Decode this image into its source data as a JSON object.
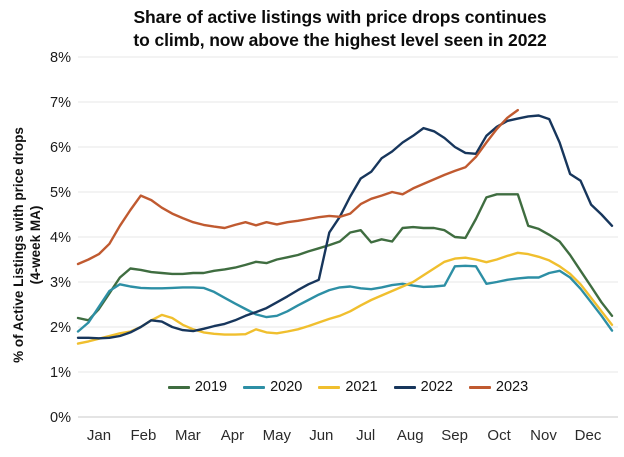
{
  "title": {
    "line1": "Share of active listings with price drops continues",
    "line2": "to climb, now above the highest level seen in 2022"
  },
  "y_axis": {
    "label_line1": "% of Active Listings with price drops",
    "label_line2": "(4-week MA)"
  },
  "chart_data": {
    "type": "line",
    "x_unit": "weekly observations, weeks 1-52",
    "months": [
      "Jan",
      "Feb",
      "Mar",
      "Apr",
      "May",
      "Jun",
      "Jul",
      "Aug",
      "Sep",
      "Oct",
      "Nov",
      "Dec"
    ],
    "y_ticks": [
      "0%",
      "1%",
      "2%",
      "3%",
      "4%",
      "5%",
      "6%",
      "7%",
      "8%"
    ],
    "ylim": [
      0,
      8
    ],
    "grid": "horizontal-only",
    "legend_position": "bottom",
    "background": "#ffffff",
    "gridline_color": "#e7e7e7",
    "baseline_color": "#c9c9c9",
    "series": [
      {
        "name": "2019",
        "color": "#3f6d40",
        "values": [
          2.2,
          2.15,
          2.4,
          2.75,
          3.1,
          3.3,
          3.27,
          3.22,
          3.2,
          3.18,
          3.18,
          3.2,
          3.2,
          3.25,
          3.28,
          3.32,
          3.38,
          3.45,
          3.42,
          3.5,
          3.55,
          3.6,
          3.68,
          3.75,
          3.82,
          3.9,
          4.1,
          4.15,
          3.88,
          3.95,
          3.9,
          4.2,
          4.22,
          4.2,
          4.2,
          4.15,
          4.0,
          3.98,
          4.4,
          4.88,
          4.95,
          4.95,
          4.95,
          4.25,
          4.18,
          4.05,
          3.9,
          3.6,
          3.25,
          2.9,
          2.55,
          2.25
        ]
      },
      {
        "name": "2020",
        "color": "#2d8fa5",
        "values": [
          1.9,
          2.1,
          2.45,
          2.8,
          2.95,
          2.9,
          2.87,
          2.86,
          2.86,
          2.87,
          2.88,
          2.88,
          2.87,
          2.78,
          2.65,
          2.52,
          2.4,
          2.28,
          2.22,
          2.25,
          2.35,
          2.48,
          2.6,
          2.72,
          2.82,
          2.88,
          2.9,
          2.86,
          2.84,
          2.88,
          2.93,
          2.96,
          2.92,
          2.89,
          2.9,
          2.92,
          3.35,
          3.36,
          3.35,
          2.96,
          3.0,
          3.05,
          3.08,
          3.1,
          3.1,
          3.2,
          3.25,
          3.1,
          2.85,
          2.55,
          2.25,
          1.92
        ]
      },
      {
        "name": "2021",
        "color": "#f0bf2e",
        "values": [
          1.63,
          1.68,
          1.74,
          1.8,
          1.86,
          1.9,
          2.0,
          2.15,
          2.27,
          2.2,
          2.05,
          1.95,
          1.88,
          1.85,
          1.83,
          1.83,
          1.84,
          1.95,
          1.88,
          1.86,
          1.9,
          1.95,
          2.02,
          2.1,
          2.18,
          2.25,
          2.35,
          2.48,
          2.6,
          2.7,
          2.8,
          2.9,
          3.0,
          3.15,
          3.3,
          3.45,
          3.52,
          3.54,
          3.5,
          3.44,
          3.5,
          3.58,
          3.65,
          3.62,
          3.56,
          3.48,
          3.35,
          3.18,
          2.95,
          2.65,
          2.35,
          2.05
        ]
      },
      {
        "name": "2022",
        "color": "#17365c",
        "values": [
          1.76,
          1.76,
          1.75,
          1.76,
          1.8,
          1.88,
          2.0,
          2.15,
          2.12,
          2.0,
          1.93,
          1.91,
          1.96,
          2.02,
          2.07,
          2.15,
          2.25,
          2.33,
          2.42,
          2.55,
          2.68,
          2.82,
          2.95,
          3.05,
          4.1,
          4.45,
          4.9,
          5.3,
          5.45,
          5.75,
          5.9,
          6.1,
          6.25,
          6.42,
          6.35,
          6.2,
          6.0,
          5.87,
          5.85,
          6.25,
          6.45,
          6.58,
          6.63,
          6.68,
          6.7,
          6.62,
          6.1,
          5.4,
          5.25,
          4.72,
          4.5,
          4.25
        ]
      },
      {
        "name": "2023",
        "color": "#c05a30",
        "values": [
          3.4,
          3.5,
          3.62,
          3.85,
          4.25,
          4.6,
          4.92,
          4.82,
          4.65,
          4.52,
          4.42,
          4.33,
          4.27,
          4.23,
          4.2,
          4.27,
          4.33,
          4.26,
          4.33,
          4.28,
          4.33,
          4.36,
          4.4,
          4.44,
          4.47,
          4.45,
          4.52,
          4.73,
          4.85,
          4.92,
          5.0,
          4.95,
          5.08,
          5.18,
          5.28,
          5.38,
          5.47,
          5.55,
          5.78,
          6.1,
          6.4,
          6.65,
          6.82
        ]
      }
    ]
  }
}
